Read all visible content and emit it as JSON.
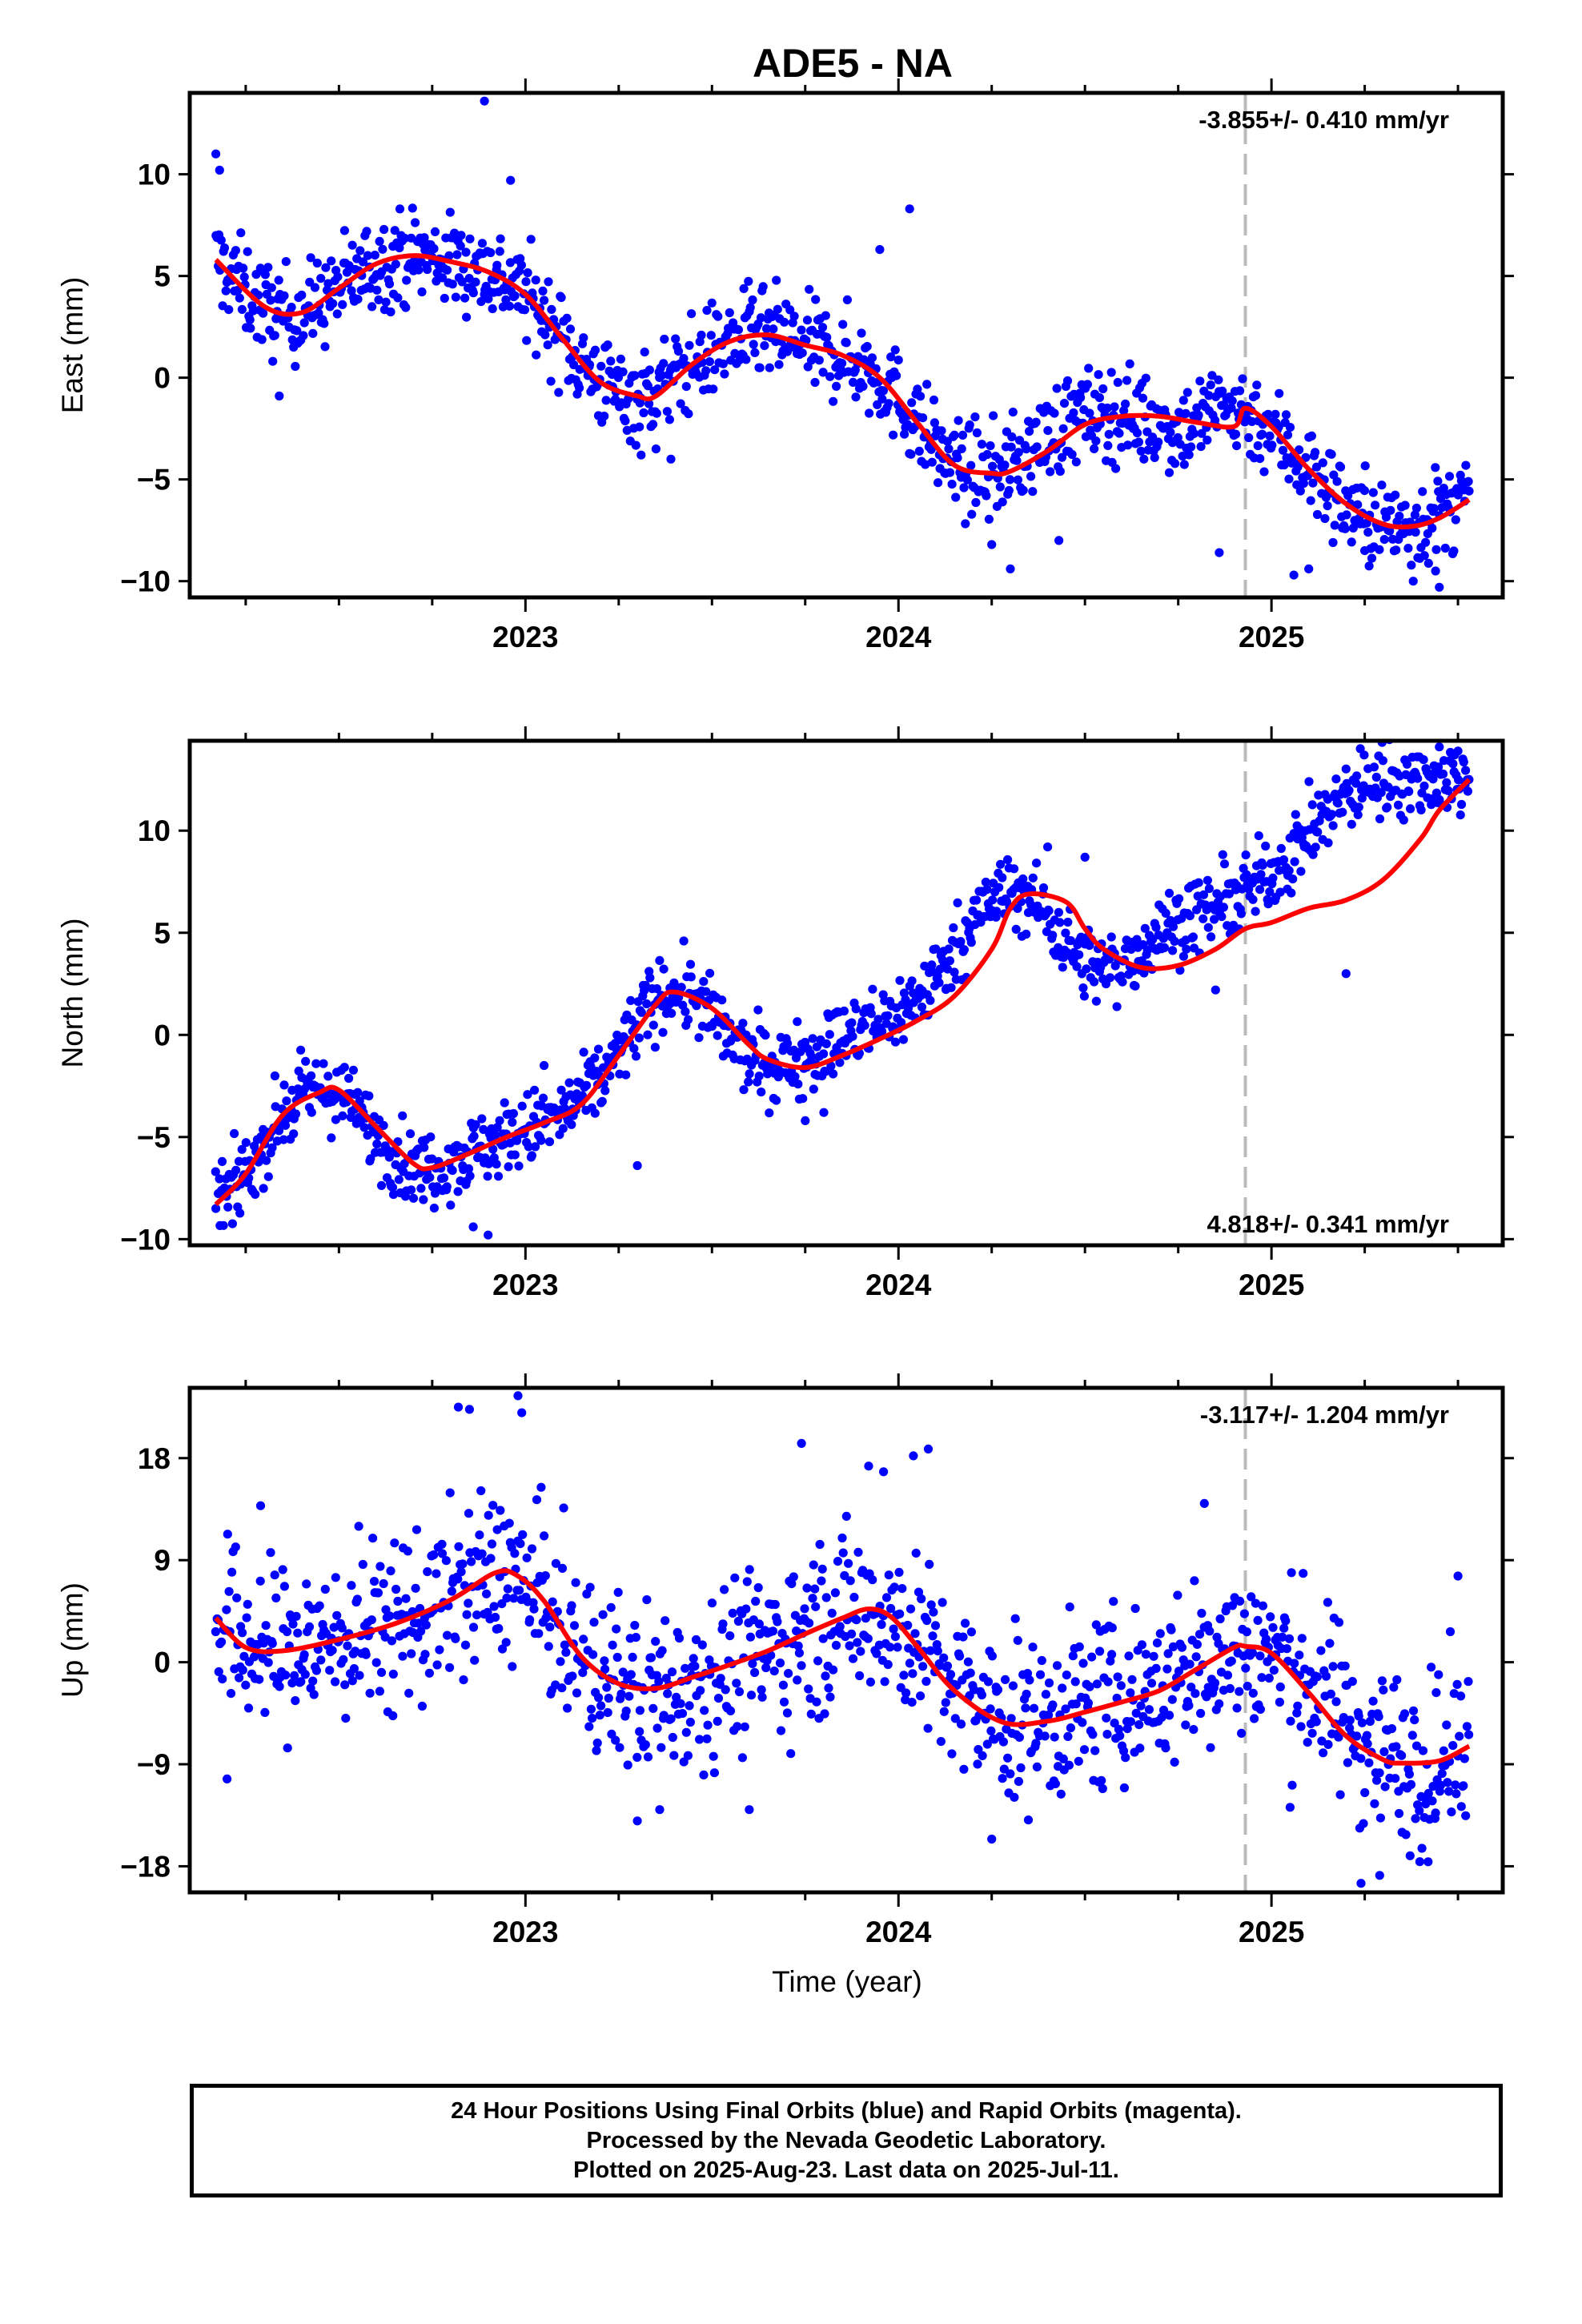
{
  "title": "ADE5 - NA",
  "xlabel": "Time (year)",
  "x_tick_labels": [
    "2023",
    "2024",
    "2025"
  ],
  "footer_lines": [
    "24 Hour Positions Using Final Orbits (blue) and Rapid Orbits (magenta).",
    "Processed by the Nevada Geodetic Laboratory.",
    "Plotted on 2025-Aug-23. Last data on 2025-Jul-11."
  ],
  "colors": {
    "final_orbits": "#0000ff",
    "model_fit": "#ff0000",
    "marker_line": "#bbbbbb",
    "frame": "#000000"
  },
  "chart_data": [
    {
      "type": "scatter",
      "title": "ADE5 - NA",
      "ylabel": "East (mm)",
      "xlabel": "",
      "xlim": [
        2022.1,
        2025.62
      ],
      "ylim": [
        -10.8,
        14
      ],
      "yticks": [
        10,
        5,
        0,
        -5,
        -10
      ],
      "ytick_labels": [
        "10",
        "5",
        "0",
        "−5",
        "−10"
      ],
      "rate_label": "-3.855+/- 0.410 mm/yr",
      "rate_position": "top-right",
      "marker_epoch": 2024.93,
      "grid": false,
      "series": [
        {
          "type": "scatter",
          "x": [
            2022.17,
            2022.2,
            2022.25,
            2022.3,
            2022.35,
            2022.4,
            2022.45,
            2022.5,
            2022.55,
            2022.6,
            2022.65,
            2022.7,
            2022.75,
            2022.8,
            2022.85,
            2022.9,
            2022.95,
            2023.0,
            2023.05,
            2023.1,
            2023.15,
            2023.2,
            2023.25,
            2023.3,
            2023.35,
            2023.4,
            2023.45,
            2023.5,
            2023.55,
            2023.6,
            2023.65,
            2023.7,
            2023.75,
            2023.8,
            2023.85,
            2023.9,
            2023.95,
            2024.0,
            2024.05,
            2024.1,
            2024.15,
            2024.2,
            2024.25,
            2024.3,
            2024.35,
            2024.4,
            2024.45,
            2024.5,
            2024.55,
            2024.6,
            2024.65,
            2024.7,
            2024.75,
            2024.8,
            2024.85,
            2024.9,
            2024.95,
            2025.0,
            2025.05,
            2025.1,
            2025.15,
            2025.2,
            2025.25,
            2025.3,
            2025.35,
            2025.4,
            2025.45,
            2025.5,
            2025.53
          ],
          "y": [
            5.8,
            5.2,
            4.3,
            3.5,
            3.1,
            3.2,
            3.7,
            4.4,
            5.0,
            5.6,
            5.9,
            6.0,
            5.9,
            5.7,
            5.5,
            5.2,
            4.8,
            4.1,
            3.1,
            1.9,
            0.7,
            -0.2,
            -0.8,
            -0.9,
            -0.6,
            0.0,
            0.7,
            1.3,
            1.8,
            2.1,
            2.1,
            1.9,
            1.6,
            1.3,
            1.1,
            0.7,
            0.0,
            -1.0,
            -2.2,
            -3.4,
            -4.3,
            -4.7,
            -4.7,
            -4.3,
            -3.6,
            -2.8,
            -2.2,
            -1.9,
            -1.8,
            -1.8,
            -2.0,
            -2.3,
            -2.5,
            -2.2,
            -1.5,
            -1.5,
            -1.9,
            -2.6,
            -3.5,
            -4.5,
            -5.5,
            -6.3,
            -6.9,
            -7.3,
            -7.3,
            -7.1,
            -6.7,
            -6.2,
            -5.9
          ],
          "scatter_halfwidth": 1.5,
          "outliers": [
            [
              2022.17,
              11.0
            ],
            [
              2022.18,
              10.2
            ],
            [
              2022.89,
              13.6
            ],
            [
              2022.96,
              9.7
            ],
            [
              2024.03,
              8.3
            ],
            [
              2023.31,
              -3.8
            ],
            [
              2023.95,
              6.3
            ],
            [
              2024.25,
              -8.2
            ],
            [
              2024.3,
              -9.4
            ],
            [
              2024.86,
              -8.6
            ],
            [
              2025.06,
              -9.7
            ],
            [
              2025.1,
              -9.4
            ],
            [
              2025.45,
              -10.3
            ],
            [
              2025.44,
              -9.5
            ],
            [
              2025.38,
              -10.0
            ],
            [
              2025.25,
              -8.5
            ],
            [
              2023.39,
              -4.0
            ],
            [
              2023.35,
              -3.5
            ],
            [
              2022.34,
              -0.9
            ],
            [
              2024.43,
              -8.0
            ]
          ]
        },
        {
          "type": "line",
          "x": [
            2022.17,
            2022.3,
            2022.4,
            2022.5,
            2022.6,
            2022.7,
            2022.8,
            2022.9,
            2023.0,
            2023.1,
            2023.2,
            2023.3,
            2023.35,
            2023.45,
            2023.55,
            2023.65,
            2023.75,
            2023.85,
            2023.95,
            2024.05,
            2024.15,
            2024.25,
            2024.3,
            2024.4,
            2024.5,
            2024.6,
            2024.7,
            2024.8,
            2024.9,
            2024.93,
            2025.0,
            2025.1,
            2025.2,
            2025.3,
            2025.38,
            2025.45,
            2025.53
          ],
          "y": [
            5.8,
            3.5,
            3.2,
            4.4,
            5.6,
            6.0,
            5.7,
            5.2,
            4.1,
            1.9,
            -0.2,
            -0.9,
            -0.9,
            0.7,
            1.8,
            2.1,
            1.6,
            1.1,
            0.0,
            -2.2,
            -4.3,
            -4.7,
            -4.6,
            -3.6,
            -2.3,
            -1.9,
            -1.9,
            -2.2,
            -2.4,
            -1.5,
            -2.4,
            -4.5,
            -6.2,
            -7.2,
            -7.3,
            -6.9,
            -6.0
          ]
        }
      ]
    },
    {
      "type": "scatter",
      "title": "",
      "ylabel": "North (mm)",
      "xlabel": "",
      "xlim": [
        2022.1,
        2025.62
      ],
      "ylim": [
        -10.3,
        14.4
      ],
      "yticks": [
        10,
        5,
        0,
        -5,
        -10
      ],
      "ytick_labels": [
        "10",
        "5",
        "0",
        "−5",
        "−10"
      ],
      "rate_label": "4.818+/- 0.341 mm/yr",
      "rate_position": "bottom-right",
      "marker_epoch": 2024.93,
      "grid": false,
      "series": [
        {
          "type": "scatter",
          "x": [
            2022.17,
            2022.2,
            2022.25,
            2022.3,
            2022.35,
            2022.4,
            2022.45,
            2022.5,
            2022.55,
            2022.6,
            2022.65,
            2022.7,
            2022.75,
            2022.8,
            2022.85,
            2022.9,
            2022.95,
            2023.0,
            2023.05,
            2023.1,
            2023.15,
            2023.2,
            2023.25,
            2023.3,
            2023.35,
            2023.4,
            2023.45,
            2023.5,
            2023.55,
            2023.6,
            2023.65,
            2023.7,
            2023.75,
            2023.8,
            2023.85,
            2023.9,
            2023.95,
            2024.0,
            2024.05,
            2024.1,
            2024.15,
            2024.2,
            2024.25,
            2024.3,
            2024.35,
            2024.4,
            2024.45,
            2024.5,
            2024.55,
            2024.6,
            2024.65,
            2024.7,
            2024.75,
            2024.8,
            2024.85,
            2024.9,
            2024.95,
            2025.0,
            2025.05,
            2025.1,
            2025.15,
            2025.2,
            2025.25,
            2025.3,
            2025.35,
            2025.4,
            2025.45,
            2025.5,
            2025.53
          ],
          "y": [
            -8.3,
            -7.9,
            -6.8,
            -5.3,
            -3.9,
            -3.0,
            -2.6,
            -2.9,
            -3.8,
            -4.9,
            -5.9,
            -6.5,
            -6.5,
            -6.2,
            -5.8,
            -5.4,
            -5.0,
            -4.7,
            -4.3,
            -3.9,
            -3.2,
            -2.2,
            -0.9,
            0.6,
            1.8,
            2.2,
            1.9,
            0.9,
            -0.3,
            -1.1,
            -1.6,
            -1.4,
            -1.0,
            -0.6,
            -0.2,
            0.2,
            0.6,
            1.1,
            1.8,
            2.8,
            4.2,
            5.6,
            6.6,
            7.0,
            6.7,
            5.8,
            4.5,
            3.6,
            3.2,
            3.5,
            4.2,
            5.0,
            5.5,
            5.9,
            6.2,
            6.6,
            7.2,
            8.0,
            8.8,
            9.8,
            10.8,
            11.7,
            12.3,
            12.5,
            12.5,
            12.5,
            12.5,
            12.5,
            12.5
          ],
          "scatter_halfwidth": 1.2,
          "outliers": [
            [
              2022.9,
              -9.8
            ],
            [
              2022.86,
              -9.4
            ],
            [
              2023.05,
              -1.5
            ],
            [
              2023.3,
              -6.4
            ],
            [
              2024.4,
              9.2
            ],
            [
              2024.5,
              8.7
            ],
            [
              2025.2,
              3.0
            ],
            [
              2025.45,
              14.1
            ],
            [
              2025.5,
              13.9
            ],
            [
              2024.85,
              2.2
            ],
            [
              2022.17,
              -8.5
            ],
            [
              2023.75,
              -4.2
            ],
            [
              2023.8,
              -3.8
            ]
          ]
        },
        {
          "type": "line",
          "x": [
            2022.17,
            2022.25,
            2022.35,
            2022.45,
            2022.5,
            2022.6,
            2022.7,
            2022.75,
            2022.85,
            2022.95,
            2023.05,
            2023.15,
            2023.25,
            2023.35,
            2023.4,
            2023.5,
            2023.6,
            2023.65,
            2023.75,
            2023.85,
            2023.95,
            2024.05,
            2024.15,
            2024.25,
            2024.3,
            2024.35,
            2024.45,
            2024.5,
            2024.55,
            2024.65,
            2024.75,
            2024.85,
            2024.93,
            2025.0,
            2025.1,
            2025.2,
            2025.3,
            2025.4,
            2025.45,
            2025.53
          ],
          "y": [
            -8.3,
            -6.8,
            -3.9,
            -2.8,
            -2.7,
            -4.5,
            -6.3,
            -6.5,
            -5.8,
            -5.0,
            -4.3,
            -3.4,
            -1.0,
            1.5,
            2.1,
            1.3,
            -0.5,
            -1.2,
            -1.6,
            -1.0,
            -0.2,
            0.7,
            1.9,
            4.2,
            6.2,
            6.9,
            6.5,
            5.2,
            4.2,
            3.3,
            3.4,
            4.2,
            5.2,
            5.5,
            6.2,
            6.6,
            7.6,
            9.6,
            11.0,
            12.5
          ]
        }
      ]
    },
    {
      "type": "scatter",
      "title": "",
      "ylabel": "Up (mm)",
      "xlabel": "Time (year)",
      "xlim": [
        2022.1,
        2025.62
      ],
      "ylim": [
        -20.3,
        24.2
      ],
      "yticks": [
        18,
        9,
        0,
        -9,
        -18
      ],
      "ytick_labels": [
        "18",
        "9",
        "0",
        "−9",
        "−18"
      ],
      "rate_label": "-3.117+/- 1.204 mm/yr",
      "rate_position": "top-right",
      "marker_epoch": 2024.93,
      "grid": false,
      "series": [
        {
          "type": "scatter",
          "x": [
            2022.17,
            2022.25,
            2022.35,
            2022.45,
            2022.55,
            2022.65,
            2022.75,
            2022.85,
            2022.95,
            2023.05,
            2023.15,
            2023.25,
            2023.35,
            2023.45,
            2023.55,
            2023.65,
            2023.75,
            2023.85,
            2023.95,
            2024.05,
            2024.15,
            2024.25,
            2024.35,
            2024.45,
            2024.55,
            2024.65,
            2024.75,
            2024.85,
            2024.95,
            2025.05,
            2025.15,
            2025.25,
            2025.35,
            2025.45,
            2025.53
          ],
          "y": [
            3.8,
            1.5,
            1.0,
            1.6,
            2.6,
            3.5,
            4.7,
            6.6,
            8.0,
            5.0,
            0.0,
            -2.2,
            -2.6,
            -1.6,
            -0.2,
            1.0,
            2.6,
            4.3,
            4.7,
            2.0,
            -2.4,
            -5.0,
            -5.3,
            -4.5,
            -3.6,
            -2.6,
            -1.5,
            0.4,
            1.4,
            -0.3,
            -3.2,
            -6.8,
            -8.7,
            -8.9,
            -7.3
          ],
          "scatter_halfwidth": 5.0,
          "outliers": [
            [
              2022.82,
              22.5
            ],
            [
              2022.85,
              22.3
            ],
            [
              2022.98,
              23.5
            ],
            [
              2022.99,
              22.0
            ],
            [
              2023.74,
              19.3
            ],
            [
              2023.92,
              17.3
            ],
            [
              2023.96,
              16.8
            ],
            [
              2024.04,
              18.2
            ],
            [
              2024.08,
              18.8
            ],
            [
              2024.25,
              -15.6
            ],
            [
              2025.05,
              -12.8
            ],
            [
              2025.24,
              -19.5
            ],
            [
              2025.29,
              -18.8
            ],
            [
              2025.35,
              -15.0
            ],
            [
              2025.42,
              -17.6
            ],
            [
              2025.44,
              -13.3
            ],
            [
              2022.2,
              -10.3
            ],
            [
              2023.3,
              -14.0
            ],
            [
              2023.36,
              -13.0
            ],
            [
              2023.6,
              -13.0
            ],
            [
              2025.5,
              7.6
            ],
            [
              2024.82,
              14.0
            ],
            [
              2022.29,
              13.8
            ]
          ]
        },
        {
          "type": "line",
          "x": [
            2022.17,
            2022.25,
            2022.35,
            2022.5,
            2022.65,
            2022.8,
            2022.92,
            2022.98,
            2023.05,
            2023.15,
            2023.25,
            2023.35,
            2023.45,
            2023.55,
            2023.65,
            2023.75,
            2023.85,
            2023.92,
            2023.98,
            2024.05,
            2024.15,
            2024.28,
            2024.4,
            2024.5,
            2024.6,
            2024.7,
            2024.8,
            2024.9,
            2024.93,
            2025.0,
            2025.1,
            2025.2,
            2025.3,
            2025.35,
            2025.45,
            2025.53
          ],
          "y": [
            3.9,
            1.3,
            1.0,
            2.0,
            3.4,
            5.5,
            7.9,
            7.6,
            5.4,
            0.5,
            -1.9,
            -2.3,
            -1.3,
            -0.2,
            1.0,
            2.5,
            3.9,
            4.7,
            4.0,
            1.4,
            -2.5,
            -5.3,
            -5.2,
            -4.4,
            -3.5,
            -2.5,
            -0.6,
            1.3,
            1.4,
            0.8,
            -2.7,
            -6.5,
            -8.6,
            -8.9,
            -8.7,
            -7.4
          ]
        }
      ]
    }
  ]
}
